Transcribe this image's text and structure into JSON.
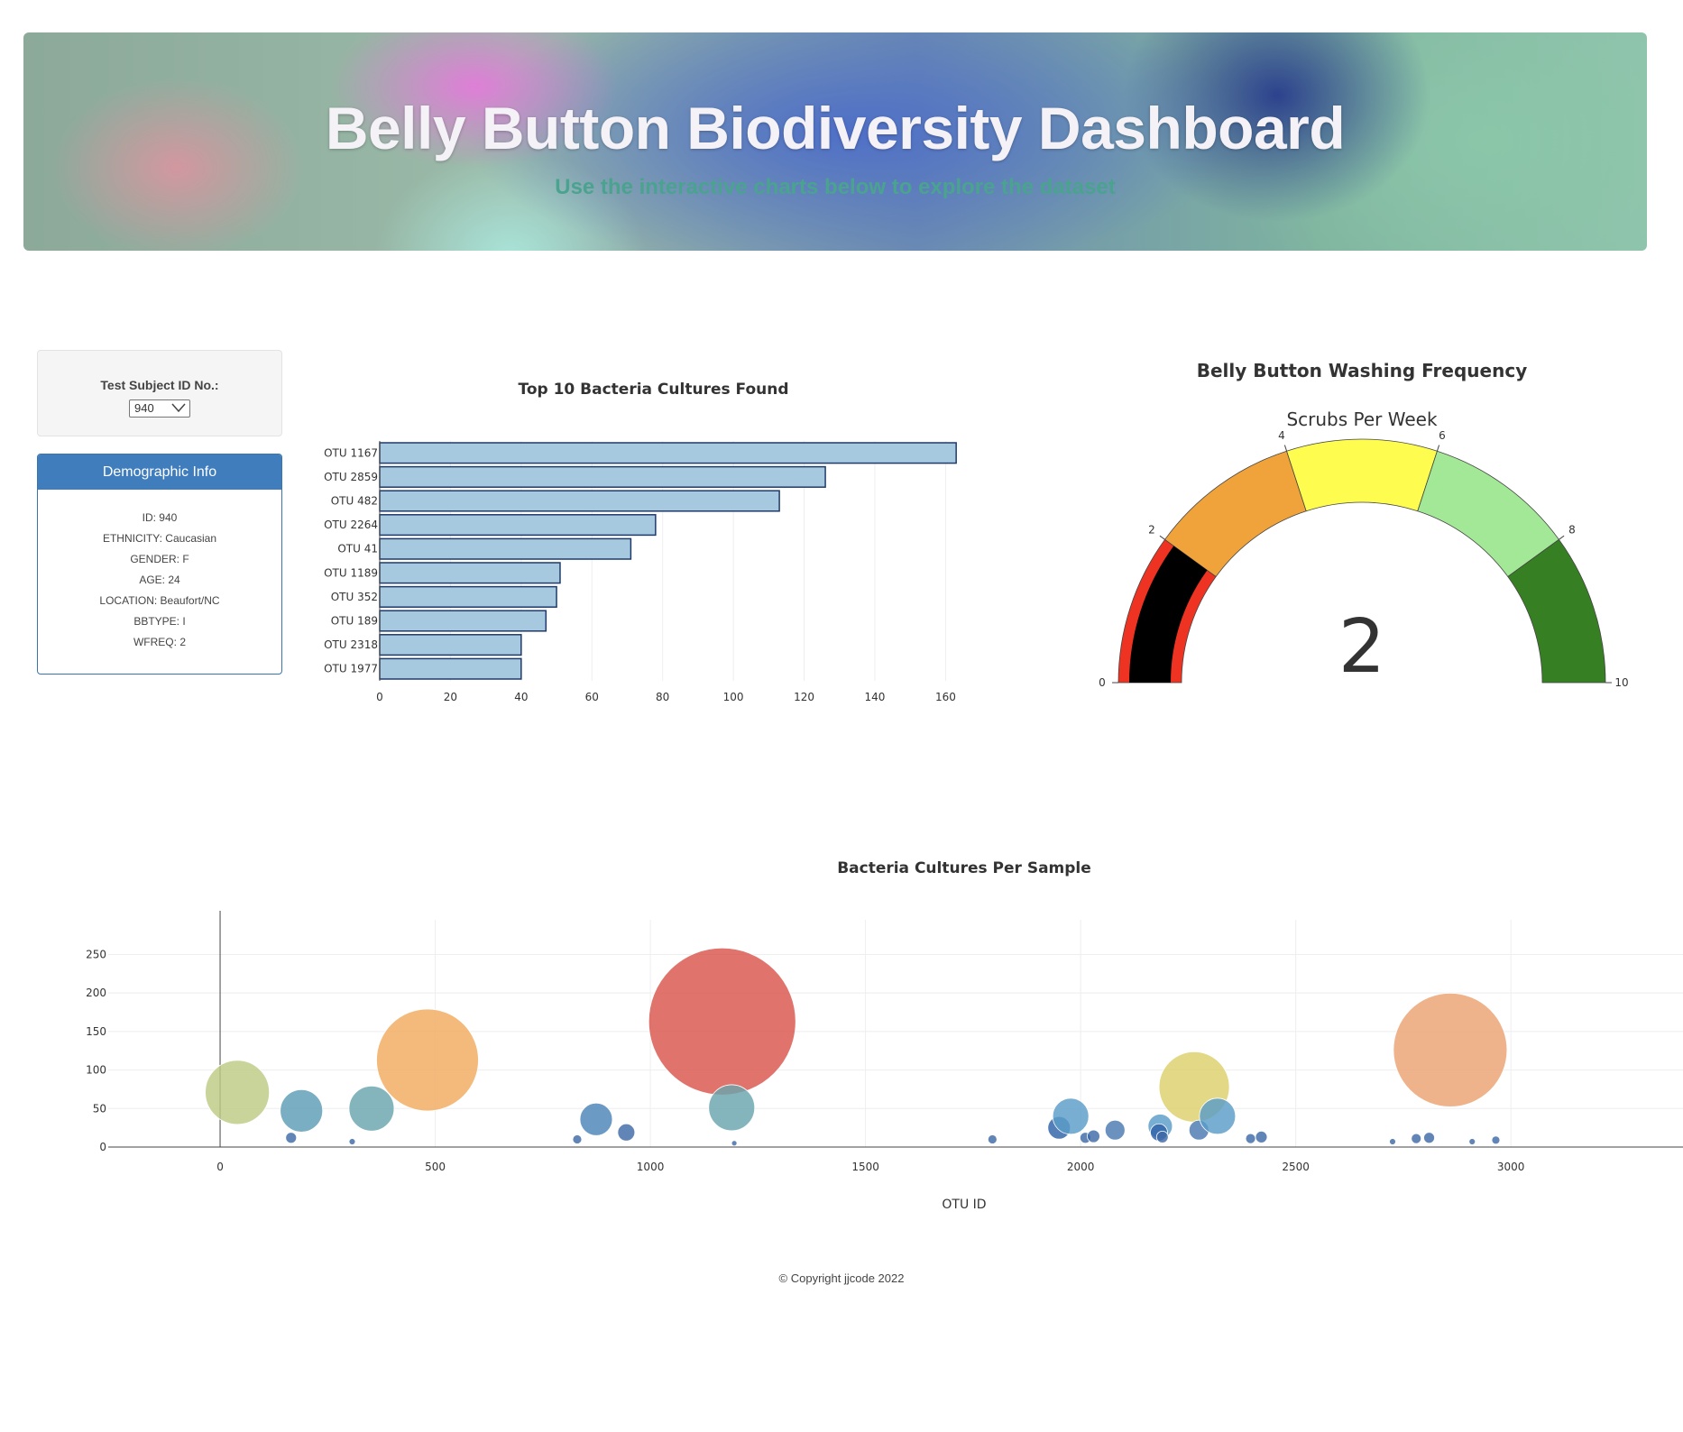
{
  "header": {
    "title": "Belly Button Biodiversity Dashboard",
    "subtitle": "Use the interactive charts below to explore the dataset"
  },
  "selector": {
    "label": "Test Subject ID No.:",
    "selected": "940"
  },
  "demographic": {
    "title": "Demographic Info",
    "rows": [
      "ID: 940",
      "ETHNICITY: Caucasian",
      "GENDER: F",
      "AGE: 24",
      "LOCATION: Beaufort/NC",
      "BBTYPE: I",
      "WFREQ: 2"
    ]
  },
  "footer": {
    "text": "© Copyright jjcode 2022"
  },
  "colors": {
    "bar_fill": "#a6c9e0",
    "bar_stroke": "#203a6a",
    "panel_header": "#3f7dbd"
  },
  "chart_data": [
    {
      "type": "bar",
      "orientation": "horizontal",
      "title": "Top 10 Bacteria Cultures Found",
      "categories": [
        "OTU 1167",
        "OTU 2859",
        "OTU 482",
        "OTU 2264",
        "OTU 41",
        "OTU 1189",
        "OTU 352",
        "OTU 189",
        "OTU 2318",
        "OTU 1977"
      ],
      "values": [
        163,
        126,
        113,
        78,
        71,
        51,
        50,
        47,
        40,
        40
      ],
      "xlim": [
        0,
        165
      ],
      "xticks": [
        0,
        20,
        40,
        60,
        80,
        100,
        120,
        140,
        160
      ],
      "grid": true
    },
    {
      "type": "gauge",
      "title": "Belly Button Washing Frequency",
      "subtitle": "Scrubs Per Week",
      "value": 2,
      "range": [
        0,
        10
      ],
      "ticks": [
        0,
        2,
        4,
        6,
        8,
        10
      ],
      "steps": [
        {
          "range": [
            0,
            2
          ],
          "color": "#ee3322"
        },
        {
          "range": [
            2,
            4
          ],
          "color": "#f0a33a"
        },
        {
          "range": [
            4,
            6
          ],
          "color": "#fdfc4f"
        },
        {
          "range": [
            6,
            8
          ],
          "color": "#a3e896"
        },
        {
          "range": [
            8,
            10
          ],
          "color": "#367f22"
        }
      ],
      "bar_color": "#000000"
    },
    {
      "type": "scatter",
      "subtype": "bubble",
      "title": "Bacteria Cultures Per Sample",
      "xlabel": "OTU ID",
      "ylabel": "",
      "xlim": [
        -260,
        3400
      ],
      "ylim": [
        0,
        295
      ],
      "xticks": [
        0,
        500,
        1000,
        1500,
        2000,
        2500,
        3000
      ],
      "yticks": [
        0,
        50,
        100,
        150,
        200,
        250
      ],
      "grid": true,
      "points": [
        {
          "x": 40,
          "y": 71,
          "color": "#bccb82"
        },
        {
          "x": 189,
          "y": 47,
          "color": "#5c9cb6"
        },
        {
          "x": 165,
          "y": 12,
          "color": "#3f6aa8"
        },
        {
          "x": 307,
          "y": 7,
          "color": "#3f6aa8"
        },
        {
          "x": 352,
          "y": 50,
          "color": "#6aa5ad"
        },
        {
          "x": 482,
          "y": 113,
          "color": "#f0ab5f"
        },
        {
          "x": 830,
          "y": 10,
          "color": "#3f6aa8"
        },
        {
          "x": 874,
          "y": 36,
          "color": "#4a84b8"
        },
        {
          "x": 944,
          "y": 19,
          "color": "#3f6aa8"
        },
        {
          "x": 1167,
          "y": 163,
          "color": "#d9564c"
        },
        {
          "x": 1189,
          "y": 51,
          "color": "#6aa5ad"
        },
        {
          "x": 1195,
          "y": 5,
          "color": "#3f6aa8"
        },
        {
          "x": 1795,
          "y": 10,
          "color": "#3f6aa8"
        },
        {
          "x": 1950,
          "y": 25,
          "color": "#2e62a8"
        },
        {
          "x": 1977,
          "y": 40,
          "color": "#5a9cc8"
        },
        {
          "x": 2011,
          "y": 12,
          "color": "#3f6aa8"
        },
        {
          "x": 2030,
          "y": 14,
          "color": "#3f6aa8"
        },
        {
          "x": 2080,
          "y": 22,
          "color": "#4a79b0"
        },
        {
          "x": 2185,
          "y": 27,
          "color": "#5a9cc8"
        },
        {
          "x": 2182,
          "y": 19,
          "color": "#2e62a8"
        },
        {
          "x": 2190,
          "y": 13,
          "color": "#3f6aa8"
        },
        {
          "x": 2264,
          "y": 78,
          "color": "#dccf6a"
        },
        {
          "x": 2275,
          "y": 22,
          "color": "#4a79b0"
        },
        {
          "x": 2318,
          "y": 40,
          "color": "#5a9cc8"
        },
        {
          "x": 2395,
          "y": 11,
          "color": "#3f6aa8"
        },
        {
          "x": 2420,
          "y": 13,
          "color": "#3f6aa8"
        },
        {
          "x": 2725,
          "y": 7,
          "color": "#3f6aa8"
        },
        {
          "x": 2780,
          "y": 11,
          "color": "#3f6aa8"
        },
        {
          "x": 2810,
          "y": 12,
          "color": "#3f6aa8"
        },
        {
          "x": 2859,
          "y": 126,
          "color": "#eba273"
        },
        {
          "x": 2910,
          "y": 7,
          "color": "#3f6aa8"
        },
        {
          "x": 2965,
          "y": 9,
          "color": "#3f6aa8"
        }
      ]
    }
  ]
}
